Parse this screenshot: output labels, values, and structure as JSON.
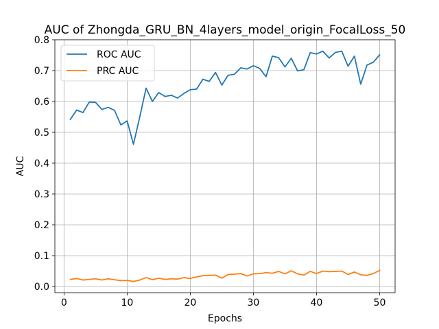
{
  "chart_data": {
    "type": "line",
    "title": "AUC of Zhongda_GRU_BN_4layers_model_origin_FocalLoss_50",
    "xlabel": "Epochs",
    "ylabel": "AUC",
    "xlim": [
      -1.45,
      52.45
    ],
    "ylim": [
      -0.02,
      0.8
    ],
    "xticks": [
      0,
      10,
      20,
      30,
      40,
      50
    ],
    "yticks": [
      0.0,
      0.1,
      0.2,
      0.3,
      0.4,
      0.5,
      0.6,
      0.7,
      0.8
    ],
    "grid": true,
    "legend_position": "top-left",
    "x": [
      1,
      2,
      3,
      4,
      5,
      6,
      7,
      8,
      9,
      10,
      11,
      12,
      13,
      14,
      15,
      16,
      17,
      18,
      19,
      20,
      21,
      22,
      23,
      24,
      25,
      26,
      27,
      28,
      29,
      30,
      31,
      32,
      33,
      34,
      35,
      36,
      37,
      38,
      39,
      40,
      41,
      42,
      43,
      44,
      45,
      46,
      47,
      48,
      49,
      50
    ],
    "series": [
      {
        "name": "ROC AUC",
        "color": "#1f77b4",
        "values": [
          0.542,
          0.572,
          0.564,
          0.598,
          0.597,
          0.574,
          0.581,
          0.571,
          0.524,
          0.537,
          0.461,
          0.55,
          0.643,
          0.6,
          0.629,
          0.616,
          0.62,
          0.611,
          0.626,
          0.638,
          0.64,
          0.672,
          0.665,
          0.694,
          0.653,
          0.685,
          0.688,
          0.709,
          0.705,
          0.716,
          0.707,
          0.68,
          0.747,
          0.742,
          0.712,
          0.74,
          0.699,
          0.703,
          0.758,
          0.754,
          0.763,
          0.741,
          0.759,
          0.763,
          0.714,
          0.747,
          0.656,
          0.718,
          0.727,
          0.751
        ]
      },
      {
        "name": "PRC AUC",
        "color": "#ff7f0e",
        "values": [
          0.023,
          0.026,
          0.021,
          0.023,
          0.025,
          0.021,
          0.025,
          0.022,
          0.019,
          0.02,
          0.016,
          0.021,
          0.029,
          0.022,
          0.027,
          0.023,
          0.025,
          0.024,
          0.029,
          0.026,
          0.031,
          0.035,
          0.036,
          0.037,
          0.027,
          0.039,
          0.04,
          0.042,
          0.034,
          0.041,
          0.042,
          0.045,
          0.043,
          0.049,
          0.041,
          0.051,
          0.041,
          0.037,
          0.049,
          0.042,
          0.05,
          0.048,
          0.049,
          0.05,
          0.039,
          0.047,
          0.038,
          0.036,
          0.042,
          0.052
        ]
      }
    ]
  }
}
